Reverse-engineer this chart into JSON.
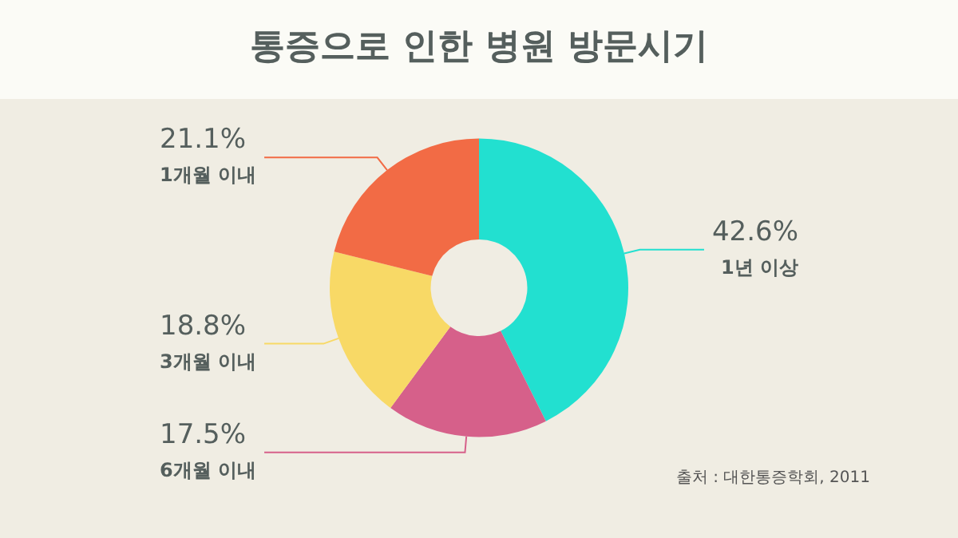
{
  "chart_data": {
    "type": "donut",
    "title": "통증으로 인한 병원 방문시기",
    "categories": [
      "1년 이상",
      "6개월 이내",
      "3개월 이내",
      "1개월 이내"
    ],
    "values": [
      42.6,
      17.5,
      18.8,
      21.1
    ],
    "value_labels": [
      "42.6%",
      "17.5%",
      "18.8%",
      "21.1%"
    ],
    "colors": [
      "#22e0d0",
      "#d6608a",
      "#f8d966",
      "#f26b45"
    ],
    "legend": false,
    "annotations": [
      "출처 : 대한통증학회, 2011"
    ]
  }
}
